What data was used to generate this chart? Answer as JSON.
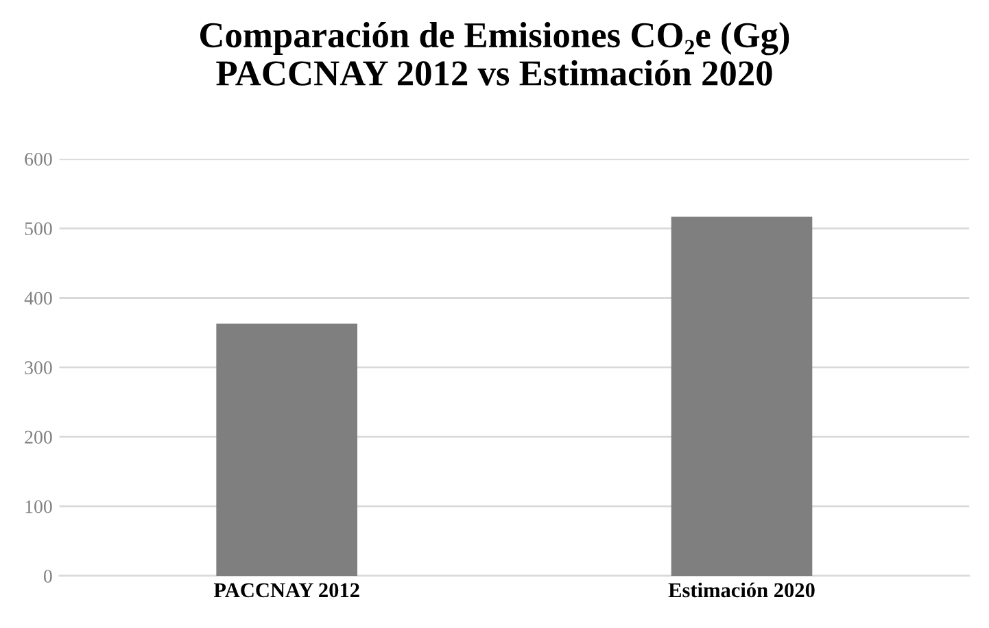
{
  "chart_data": {
    "type": "bar",
    "title": "Comparación de Emisiones CO₂e (Gg)\nPACCNAY 2012 vs Estimación 2020",
    "categories": [
      "PACCNAY 2012",
      "Estimación 2020"
    ],
    "values": [
      363,
      517
    ],
    "color": "#7f7f7f",
    "ylim": [
      0,
      600
    ],
    "yticks": [
      0,
      100,
      200,
      300,
      400,
      500,
      600
    ],
    "grid": "y"
  }
}
